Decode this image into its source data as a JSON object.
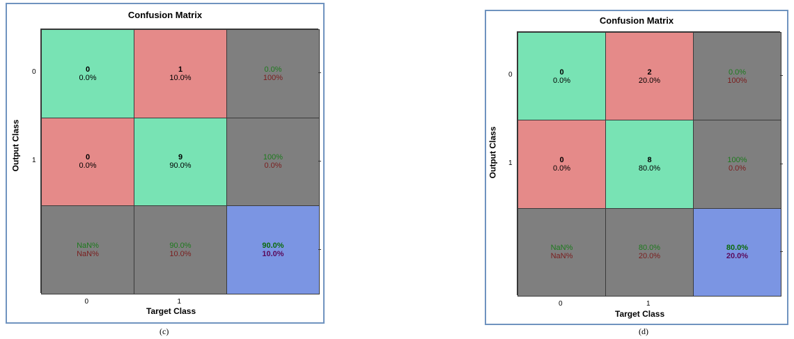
{
  "colors": {
    "correct": "#78e3b4",
    "incorrect": "#e58a89",
    "summary": "#7f7f7f",
    "overall": "#7b95e3"
  },
  "chart_data": [
    {
      "type": "heatmap",
      "title": "Confusion Matrix",
      "xlabel": "Target Class",
      "ylabel": "Output Class",
      "x_ticks": [
        "0",
        "1"
      ],
      "y_ticks": [
        "0",
        "1"
      ],
      "caption": "(c)",
      "cells": [
        [
          {
            "count": "0",
            "pct": "0.0%"
          },
          {
            "count": "1",
            "pct": "10.0%"
          },
          {
            "top": "0.0%",
            "bottom": "100%"
          }
        ],
        [
          {
            "count": "0",
            "pct": "0.0%"
          },
          {
            "count": "9",
            "pct": "90.0%"
          },
          {
            "top": "100%",
            "bottom": "0.0%"
          }
        ],
        [
          {
            "top": "NaN%",
            "bottom": "NaN%"
          },
          {
            "top": "90.0%",
            "bottom": "10.0%"
          },
          {
            "top": "90.0%",
            "bottom": "10.0%"
          }
        ]
      ]
    },
    {
      "type": "heatmap",
      "title": "Confusion Matrix",
      "xlabel": "Target Class",
      "ylabel": "Output Class",
      "x_ticks": [
        "0",
        "1"
      ],
      "y_ticks": [
        "0",
        "1"
      ],
      "caption": "(d)",
      "cells": [
        [
          {
            "count": "0",
            "pct": "0.0%"
          },
          {
            "count": "2",
            "pct": "20.0%"
          },
          {
            "top": "0.0%",
            "bottom": "100%"
          }
        ],
        [
          {
            "count": "0",
            "pct": "0.0%"
          },
          {
            "count": "8",
            "pct": "80.0%"
          },
          {
            "top": "100%",
            "bottom": "0.0%"
          }
        ],
        [
          {
            "top": "NaN%",
            "bottom": "NaN%"
          },
          {
            "top": "80.0%",
            "bottom": "20.0%"
          },
          {
            "top": "80.0%",
            "bottom": "20.0%"
          }
        ]
      ]
    }
  ]
}
